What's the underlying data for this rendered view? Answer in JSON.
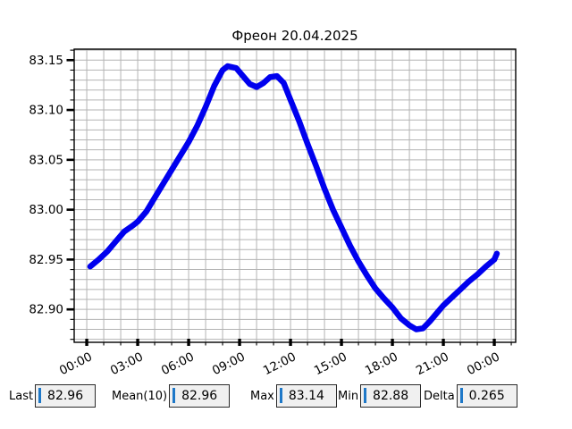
{
  "title": "Фреон 20.04.2025",
  "colors": {
    "line": "#0000ee",
    "grid": "#b3b3b3",
    "axis": "#000000",
    "box_bg": "#f0f0f0",
    "box_border": "#2a2a2a",
    "caret": "#1e78c8",
    "background": "#ffffff"
  },
  "chart_data": {
    "type": "line",
    "title": "Фреон 20.04.2025",
    "xlabel": "",
    "ylabel": "",
    "grid": true,
    "legend": "none",
    "xlim_hours": [
      -0.74,
      25.26
    ],
    "ylim": [
      82.867,
      83.161
    ],
    "x_minor_step_hours": 1,
    "y_minor_step": 0.01,
    "x_ticks": {
      "hours": [
        0,
        3,
        6,
        9,
        12,
        15,
        18,
        21,
        24
      ],
      "labels": [
        "00:00",
        "03:00",
        "06:00",
        "09:00",
        "12:00",
        "15:00",
        "18:00",
        "21:00",
        "00:00"
      ]
    },
    "y_ticks": [
      82.9,
      82.95,
      83.0,
      83.05,
      83.1,
      83.15
    ],
    "y_tick_labels": [
      "82.90",
      "82.95",
      "83.00",
      "83.05",
      "83.10",
      "83.15"
    ],
    "series": [
      {
        "name": "Фреон",
        "color": "#0000ee",
        "points": [
          [
            0.2,
            82.943
          ],
          [
            0.7,
            82.95
          ],
          [
            1.2,
            82.958
          ],
          [
            1.7,
            82.968
          ],
          [
            2.2,
            82.978
          ],
          [
            2.7,
            82.984
          ],
          [
            3.0,
            82.988
          ],
          [
            3.5,
            82.998
          ],
          [
            4.0,
            83.012
          ],
          [
            4.5,
            83.026
          ],
          [
            5.0,
            83.04
          ],
          [
            5.5,
            83.054
          ],
          [
            6.0,
            83.068
          ],
          [
            6.5,
            83.084
          ],
          [
            7.0,
            83.103
          ],
          [
            7.5,
            83.124
          ],
          [
            8.0,
            83.14
          ],
          [
            8.3,
            83.144
          ],
          [
            8.8,
            83.142
          ],
          [
            9.2,
            83.134
          ],
          [
            9.6,
            83.126
          ],
          [
            10.0,
            83.123
          ],
          [
            10.4,
            83.127
          ],
          [
            10.8,
            83.133
          ],
          [
            11.2,
            83.134
          ],
          [
            11.6,
            83.127
          ],
          [
            12.0,
            83.11
          ],
          [
            12.5,
            83.089
          ],
          [
            13.0,
            83.066
          ],
          [
            13.5,
            83.044
          ],
          [
            14.0,
            83.021
          ],
          [
            14.5,
            83.0
          ],
          [
            15.0,
            82.982
          ],
          [
            15.5,
            82.964
          ],
          [
            16.0,
            82.948
          ],
          [
            16.5,
            82.934
          ],
          [
            17.0,
            82.921
          ],
          [
            17.5,
            82.911
          ],
          [
            18.0,
            82.902
          ],
          [
            18.5,
            82.891
          ],
          [
            19.0,
            82.884
          ],
          [
            19.4,
            82.88
          ],
          [
            19.8,
            82.881
          ],
          [
            20.2,
            82.888
          ],
          [
            20.6,
            82.896
          ],
          [
            21.0,
            82.904
          ],
          [
            21.5,
            82.912
          ],
          [
            22.0,
            82.92
          ],
          [
            22.5,
            82.928
          ],
          [
            23.0,
            82.935
          ],
          [
            23.5,
            82.943
          ],
          [
            24.0,
            82.95
          ],
          [
            24.15,
            82.956
          ]
        ]
      }
    ]
  },
  "stats": {
    "items": [
      {
        "label": "Last",
        "value": "82.96"
      },
      {
        "label": "Mean(10)",
        "value": "82.96"
      },
      {
        "label": "Max",
        "value": "83.14"
      },
      {
        "label": "Min",
        "value": "82.88"
      },
      {
        "label": "Delta",
        "value": "0.265"
      }
    ]
  }
}
